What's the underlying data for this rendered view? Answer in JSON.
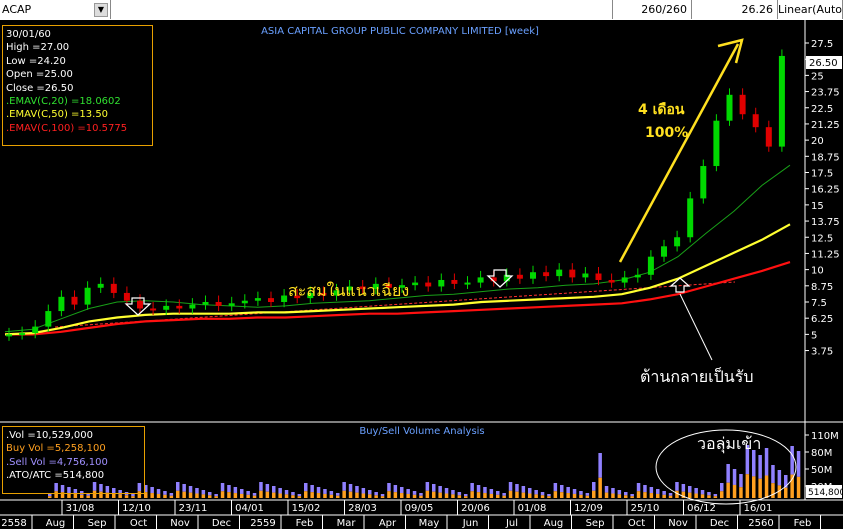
{
  "toolbar": {
    "symbol": "ACAP",
    "dropdown_icon": "chevron-down-icon",
    "bar_count": "260/260",
    "last_price": "26.26",
    "scale_mode": "Linear(Auto)"
  },
  "chart": {
    "title": "ASIA CAPITAL GROUP PUBLIC COMPANY LIMITED [week]",
    "price_tag": "26.50",
    "y_ticks": [
      "27.5",
      "26.25",
      "25",
      "23.75",
      "22.5",
      "21.25",
      "20",
      "18.75",
      "17.5",
      "16.25",
      "15",
      "13.75",
      "12.5",
      "11.25",
      "10",
      "8.75",
      "7.5",
      "6.25",
      "5",
      "3.75"
    ],
    "annotations": {
      "gain_line1": "4 เดือน",
      "gain_line2": "100%",
      "accumulate": "สะสมในแนวเฉียง",
      "resistance": "ต้านกลายเป็นรับ",
      "volume_inflow": "วอลุ่มเข้า"
    },
    "colors": {
      "up": "#00d800",
      "down": "#e00000",
      "ema20": "#18a018",
      "ema50": "#ffff30",
      "ema100": "#ff1010",
      "annotation": "#ffe020",
      "trend": "#ff3030"
    }
  },
  "info": {
    "date": "30/01/60",
    "high": "High  =27.00",
    "low": "Low   =24.20",
    "open": "Open  =25.00",
    "close": "Close  =26.50",
    "ema20": ".EMAV(C,20)   =18.0602",
    "ema50": ".EMAV(C,50)   =13.50",
    "ema100": ".EMAV(C,100)   =10.5775"
  },
  "volume": {
    "title": "Buy/Sell Volume Analysis",
    "vol": ".Vol   =10,529,000",
    "buy": "Buy Vol   =5,258,100",
    "sell": ".Sell Vol   =4,756,100",
    "atoatc": ".ATO/ATC   =514,800",
    "y_ticks": [
      "110M",
      "80M",
      "50M",
      "20M"
    ],
    "tag": "514,800"
  },
  "xaxis": {
    "top": [
      "31/08",
      "12/10",
      "23/11",
      "04/01",
      "15/02",
      "28/03",
      "09/05",
      "20/06",
      "01/08",
      "12/09",
      "25/10",
      "06/12",
      "16/01"
    ],
    "bottom": [
      "2558",
      "Aug",
      "Sep",
      "Oct",
      "Nov",
      "Dec",
      "2559",
      "Feb",
      "Mar",
      "Apr",
      "May",
      "Jun",
      "Jul",
      "Aug",
      "Sep",
      "Oct",
      "Nov",
      "Dec",
      "2560",
      "Feb"
    ]
  },
  "chart_data": {
    "type": "candlestick",
    "title": "ASIA CAPITAL GROUP PUBLIC COMPANY LIMITED [week]",
    "ylim": [
      3.75,
      27.5
    ],
    "series": [
      {
        "name": "EMAV(C,20)",
        "values": [
          5.2,
          5.4,
          6.2,
          7.0,
          7.5,
          7.6,
          7.5,
          7.3,
          7.2,
          7.1,
          7.2,
          7.4,
          7.5,
          7.6,
          7.8,
          8.0,
          8.1,
          8.3,
          8.5,
          8.6,
          8.8,
          8.9,
          9.2,
          9.8,
          11.0,
          12.8,
          14.5,
          16.5,
          18.06
        ]
      },
      {
        "name": "EMAV(C,50)",
        "values": [
          5.0,
          5.1,
          5.5,
          6.0,
          6.3,
          6.5,
          6.6,
          6.6,
          6.6,
          6.7,
          6.7,
          6.8,
          6.9,
          7.0,
          7.1,
          7.2,
          7.3,
          7.5,
          7.6,
          7.7,
          7.8,
          7.9,
          8.1,
          8.6,
          9.3,
          10.3,
          11.3,
          12.3,
          13.5
        ]
      },
      {
        "name": "EMAV(C,100)",
        "values": [
          5.0,
          5.0,
          5.2,
          5.5,
          5.8,
          6.0,
          6.1,
          6.2,
          6.2,
          6.3,
          6.3,
          6.4,
          6.5,
          6.6,
          6.6,
          6.7,
          6.8,
          6.9,
          7.0,
          7.1,
          7.2,
          7.3,
          7.4,
          7.7,
          8.1,
          8.7,
          9.3,
          9.9,
          10.58
        ]
      }
    ],
    "last_candle": {
      "date": "30/01/60",
      "open": 25.0,
      "high": 27.0,
      "low": 24.2,
      "close": 26.5
    }
  }
}
